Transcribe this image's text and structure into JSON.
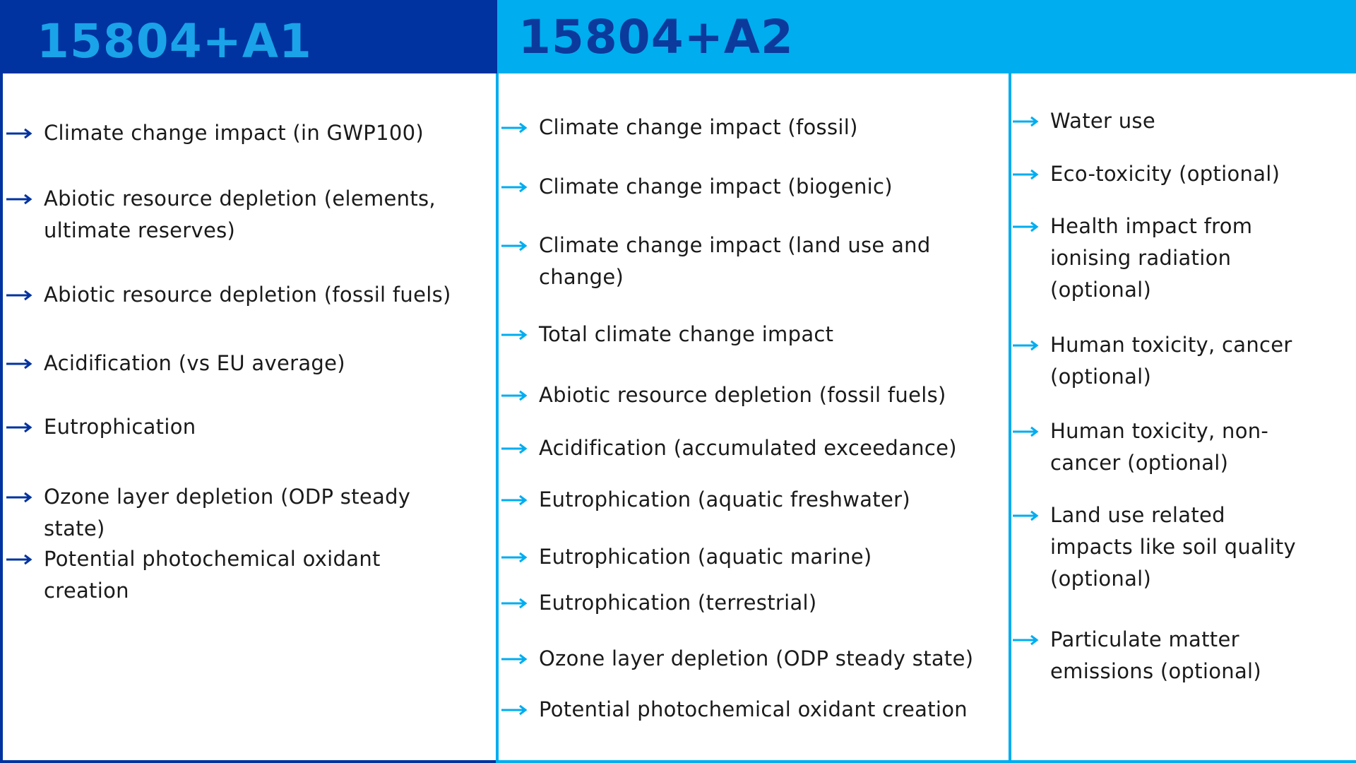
{
  "headers": {
    "a1": "15804+A1",
    "a2": "15804+A2"
  },
  "colors": {
    "dark_blue": "#0033a0",
    "light_blue": "#00adef"
  },
  "columns": [
    {
      "header": "15804+A1",
      "arrow_color": "#0033a0",
      "items": [
        "Climate change impact (in GWP100)",
        "Abiotic resource depletion (elements, ultimate reserves)",
        "Abiotic resource depletion (fossil fuels)",
        "Acidification (vs EU average)",
        "Eutrophication",
        "Ozone layer depletion (ODP steady state)",
        "Potential photochemical oxidant creation"
      ]
    },
    {
      "header": "15804+A2",
      "arrow_color": "#00adef",
      "items": [
        "Climate change impact (fossil)",
        "Climate change impact (biogenic)",
        "Climate change impact (land use and change)",
        "Total climate change impact",
        "Abiotic resource depletion (fossil fuels)",
        "Acidification (accumulated exceedance)",
        "Eutrophication (aquatic freshwater)",
        "Eutrophication (aquatic marine)",
        "Eutrophication (terrestrial)",
        "Ozone layer depletion (ODP steady state)",
        "Potential photochemical oxidant creation"
      ]
    },
    {
      "header": "15804+A2",
      "arrow_color": "#00adef",
      "items": [
        "Water use",
        "Eco-toxicity (optional)",
        "Health impact from ionising radiation (optional)",
        "Human toxicity, cancer (optional)",
        "Human toxicity, non-cancer (optional)",
        "Land use related impacts like soil quality (optional)",
        "Particulate matter emissions (optional)"
      ]
    }
  ]
}
